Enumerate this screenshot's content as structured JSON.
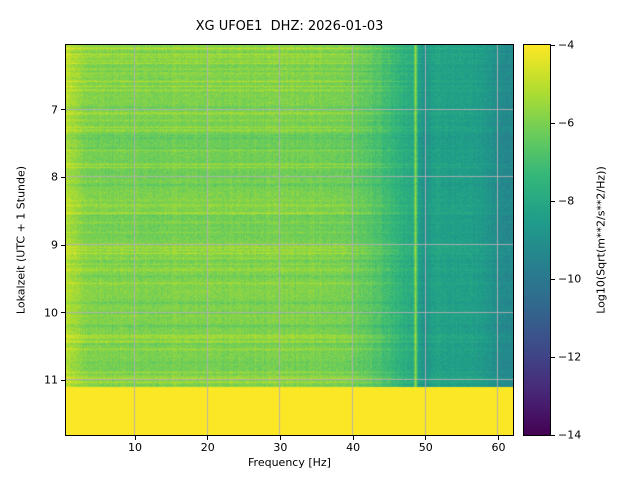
{
  "chart_data": {
    "type": "heatmap",
    "title": "XG UFOE1  DHZ: 2026-01-03",
    "xlabel": "Frequency [Hz]",
    "ylabel": "Lokalzeit (UTC + 1 Stunde)",
    "x_range": [
      0.5,
      62
    ],
    "x_ticks": [
      10,
      20,
      30,
      40,
      50,
      60
    ],
    "y_range": [
      6.04,
      11.81
    ],
    "y_ticks": [
      7,
      8,
      9,
      10,
      11
    ],
    "grid": true,
    "colormap": "viridis",
    "colorbar": {
      "label": "Log10(Sqrt(m**2/s**2/Hz))",
      "ticks": [
        -4,
        -6,
        -8,
        -10,
        -12,
        -14
      ],
      "vmin": -14,
      "vmax": -4
    },
    "content": {
      "description": "Seismic spectrogram: broadband green field with horizontal yellow streaks, bright energy below 3 Hz, power roll-off to teal above ~45 Hz, a narrow bright vertical line near 48.6 Hz beside a darker column near 49.8 Hz, darker edge above 59 Hz, and a saturated yellow band after ~11.1 local time.",
      "background_level": -6.0,
      "low_freq_bright_boost": 0.9,
      "high_freq_rolloff_start_hz": 45,
      "high_freq_level": -8.4,
      "far_right_level": -9.4,
      "far_right_start_hz": 59,
      "dark_column_hz": 49.8,
      "bright_line_hz": 48.6,
      "saturated_band_start_time": 11.1,
      "saturated_band_level": -4.02,
      "streak_orientation": "horizontal"
    }
  }
}
